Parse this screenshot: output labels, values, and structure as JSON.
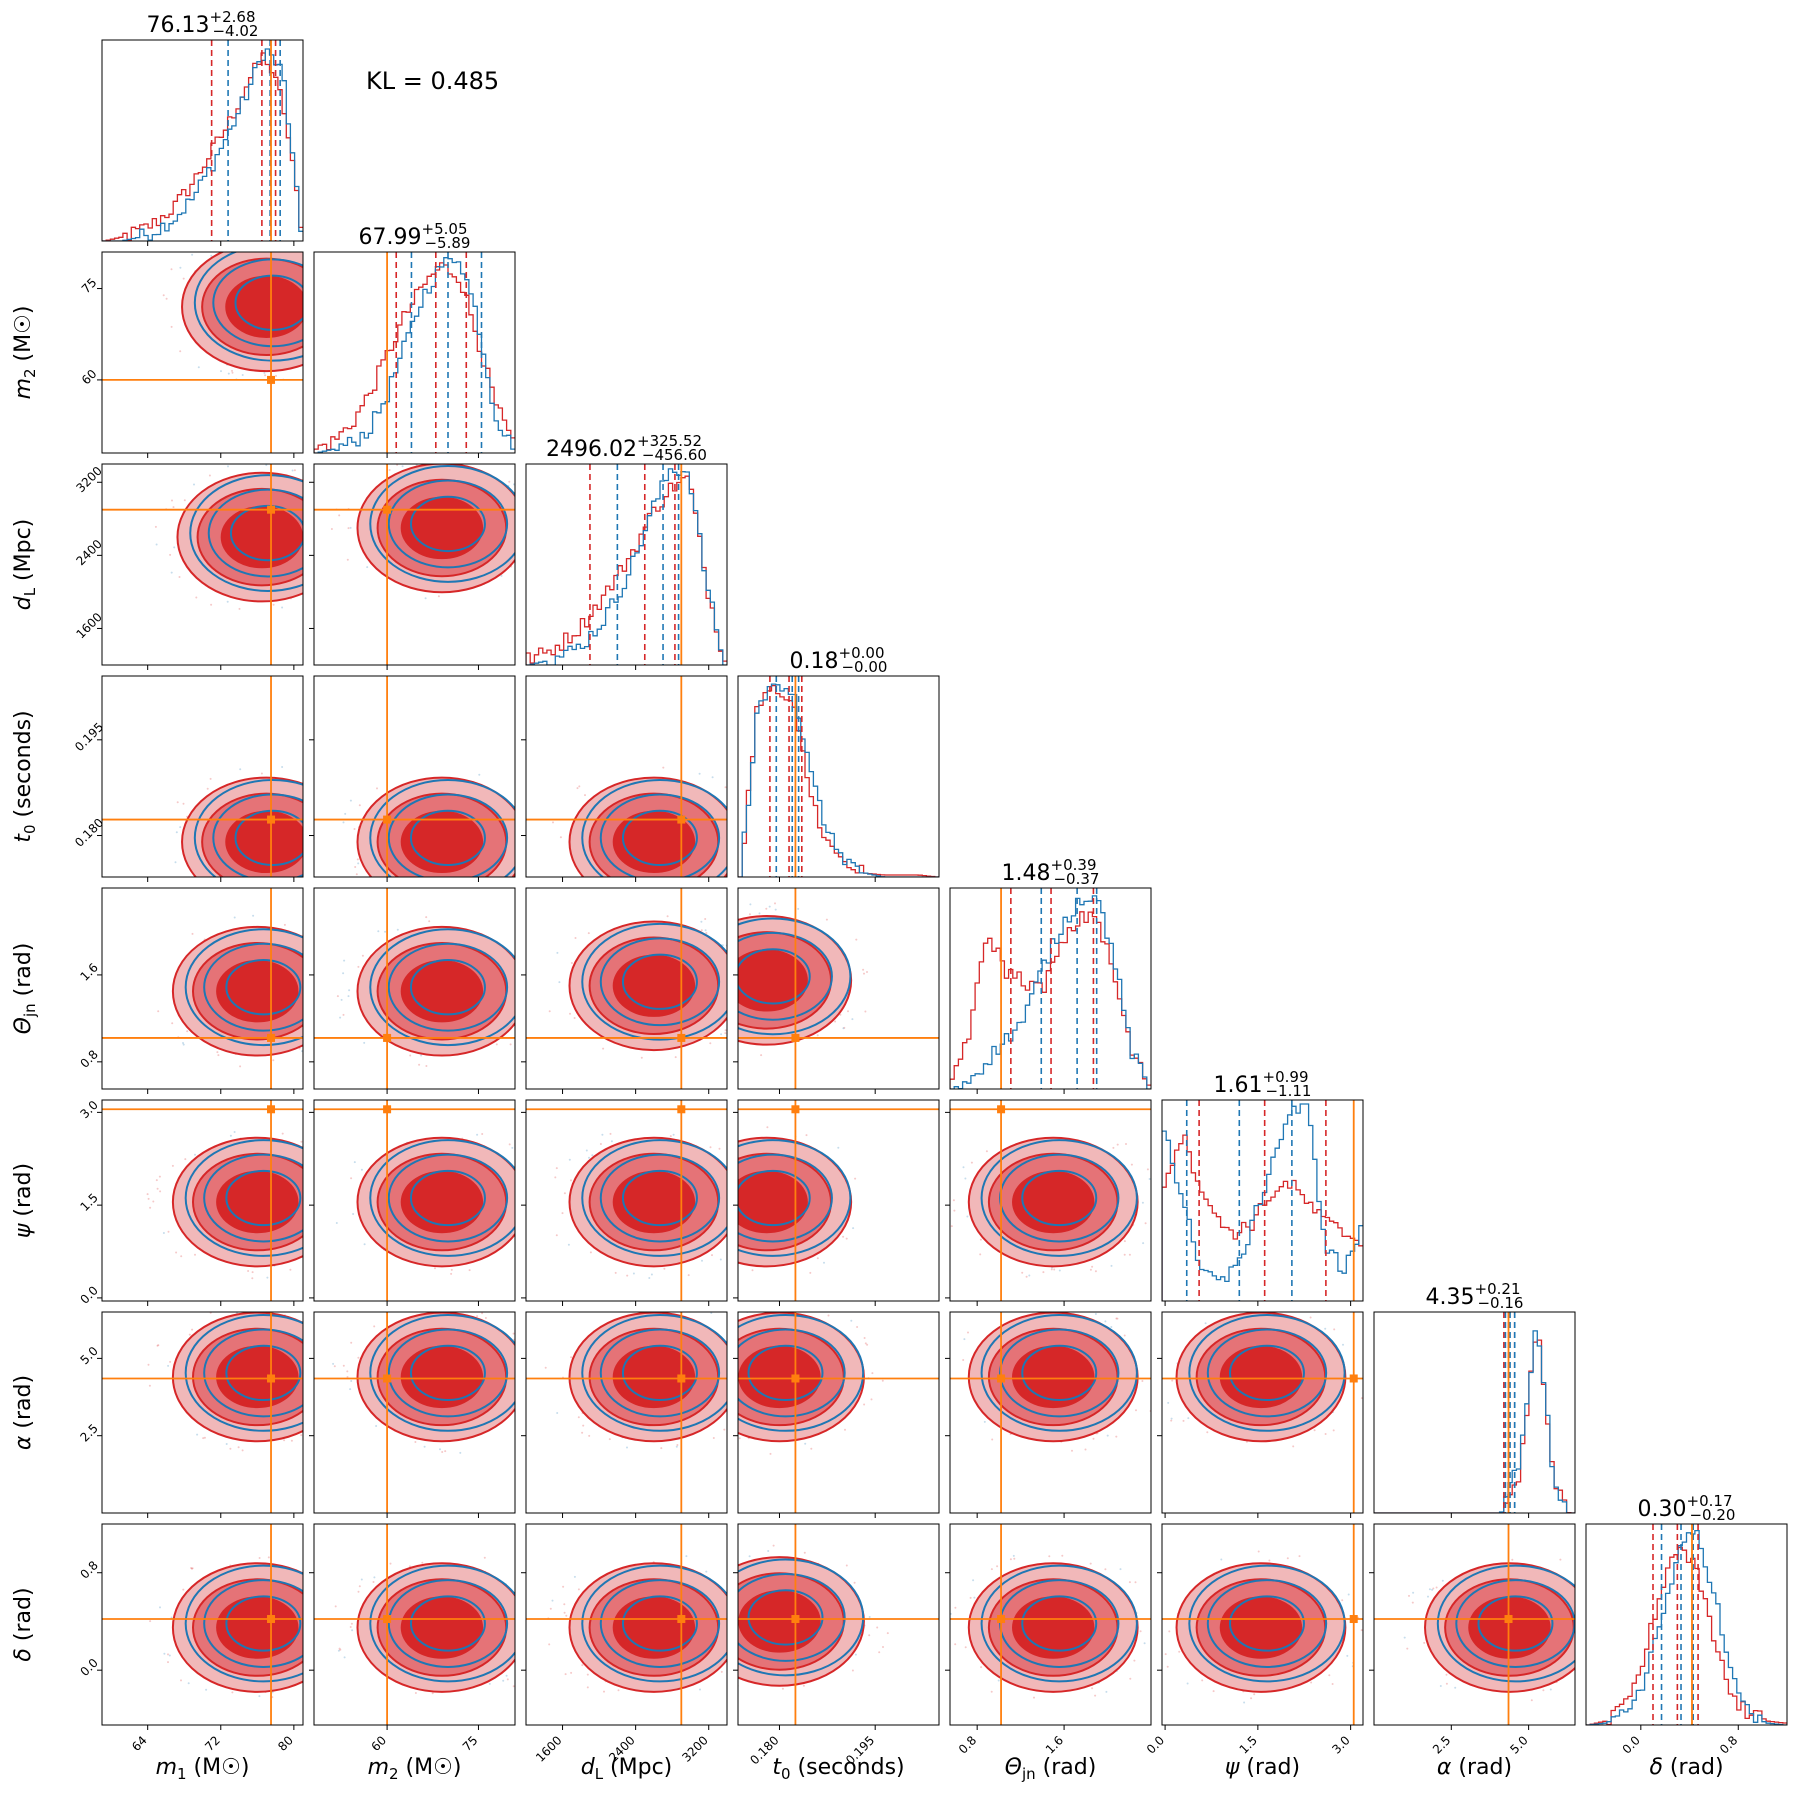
{
  "kl_text": "KL = 0.485",
  "colors": {
    "red": "#d62728",
    "red_fill_outer": "#f1b8b9",
    "red_fill_mid": "#e57377",
    "blue": "#1f77b4",
    "truth": "#ff7f0e"
  },
  "chart_data": {
    "type": "corner",
    "parameters": [
      {
        "key": "m1",
        "label": "m₁ (M☉)",
        "label_main": "m",
        "label_sub": "1",
        "label_unit": " (M☉)",
        "range": [
          59,
          81
        ],
        "ticks": [
          64,
          72,
          80
        ],
        "tick_labels": [
          "64",
          "72",
          "80"
        ],
        "truth": 77.5,
        "summary": {
          "median": "76.13",
          "plus": "+2.68",
          "minus": "−4.02"
        }
      },
      {
        "key": "m2",
        "label": "m₂ (M☉)",
        "label_main": "m",
        "label_sub": "2",
        "label_unit": " (M☉)",
        "range": [
          48,
          81
        ],
        "ticks": [
          60,
          75
        ],
        "tick_labels": [
          "60",
          "75"
        ],
        "truth": 60,
        "summary": {
          "median": "67.99",
          "plus": "+5.05",
          "minus": "−5.89"
        }
      },
      {
        "key": "dL",
        "label": "d_L (Mpc)",
        "label_main": "d",
        "label_sub": "L",
        "label_unit": " (Mpc)",
        "range": [
          1200,
          3400
        ],
        "ticks": [
          1600,
          2400,
          3200
        ],
        "tick_labels": [
          "1600",
          "2400",
          "3200"
        ],
        "truth": 2900,
        "summary": {
          "median": "2496.02",
          "plus": "+325.52",
          "minus": "−456.60"
        }
      },
      {
        "key": "t0",
        "label": "t₀ (seconds)",
        "label_main": "t",
        "label_sub": "0",
        "label_unit": " (seconds)",
        "range": [
          0.1735,
          0.205
        ],
        "ticks": [
          0.18,
          0.195
        ],
        "tick_labels": [
          "0.180",
          "0.195"
        ],
        "truth": 0.1825,
        "summary": {
          "median": "0.18",
          "plus": "+0.00",
          "minus": "−0.00"
        }
      },
      {
        "key": "theta_jn",
        "label": "Θ_jn (rad)",
        "label_main": "Θ",
        "label_sub": "jn",
        "label_unit": " (rad)",
        "range": [
          0.55,
          2.4
        ],
        "ticks": [
          0.8,
          1.6
        ],
        "tick_labels": [
          "0.8",
          "1.6"
        ],
        "truth": 1.02,
        "summary": {
          "median": "1.48",
          "plus": "+0.39",
          "minus": "−0.37"
        }
      },
      {
        "key": "psi",
        "label": "ψ (rad)",
        "label_main": "ψ",
        "label_sub": "",
        "label_unit": " (rad)",
        "range": [
          -0.05,
          3.2
        ],
        "ticks": [
          0.0,
          1.5,
          3.0
        ],
        "tick_labels": [
          "0.0",
          "1.5",
          "3.0"
        ],
        "truth": 3.05,
        "summary": {
          "median": "1.61",
          "plus": "+0.99",
          "minus": "−1.11"
        }
      },
      {
        "key": "alpha",
        "label": "α (rad)",
        "label_main": "α",
        "label_sub": "",
        "label_unit": " (rad)",
        "range": [
          0.0,
          6.5
        ],
        "ticks": [
          2.5,
          5.0
        ],
        "tick_labels": [
          "2.5",
          "5.0"
        ],
        "truth": 4.35,
        "summary": {
          "median": "4.35",
          "plus": "+0.21",
          "minus": "−0.16"
        }
      },
      {
        "key": "delta",
        "label": "δ (rad)",
        "label_main": "δ",
        "label_sub": "",
        "label_unit": " (rad)",
        "range": [
          -0.45,
          1.2
        ],
        "ticks": [
          0.0,
          0.8
        ],
        "tick_labels": [
          "0.0",
          "0.8"
        ],
        "truth": 0.42,
        "summary": {
          "median": "0.30",
          "plus": "+0.17",
          "minus": "−0.20"
        }
      }
    ],
    "quantile_lines": {
      "red": [
        [
          71.0,
          76.5,
          78.0
        ],
        [
          61.5,
          68.0,
          73.0
        ],
        [
          1900,
          2500,
          2830
        ],
        [
          0.1785,
          0.1815,
          0.1835
        ],
        [
          1.11,
          1.48,
          1.87
        ],
        [
          0.55,
          1.61,
          2.6
        ],
        [
          4.2,
          4.35,
          4.55
        ],
        [
          0.1,
          0.3,
          0.47
        ]
      ],
      "blue": [
        [
          72.8,
          77.4,
          78.5
        ],
        [
          64.0,
          70.0,
          75.5
        ],
        [
          2200,
          2700,
          2870
        ],
        [
          0.1795,
          0.182,
          0.183
        ],
        [
          1.39,
          1.72,
          1.9
        ],
        [
          0.35,
          1.2,
          2.05
        ],
        [
          4.25,
          4.4,
          4.55
        ],
        [
          0.17,
          0.33,
          0.43
        ]
      ]
    },
    "histogram_shapes": {
      "red": [
        [
          0.0,
          0.02,
          0.05,
          0.1,
          0.18,
          0.3,
          0.45,
          0.6,
          0.8,
          0.95,
          0.7,
          0.1
        ],
        [
          0.02,
          0.06,
          0.15,
          0.3,
          0.5,
          0.7,
          0.85,
          0.95,
          0.9,
          0.6,
          0.25,
          0.05
        ],
        [
          0.03,
          0.06,
          0.12,
          0.2,
          0.32,
          0.45,
          0.6,
          0.78,
          0.9,
          0.95,
          0.4,
          0.02
        ],
        [
          0.0,
          0.9,
          0.95,
          0.85,
          0.4,
          0.15,
          0.05,
          0.02,
          0.01,
          0.01,
          0.01,
          0.0
        ],
        [
          0.05,
          0.3,
          0.8,
          0.6,
          0.55,
          0.5,
          0.7,
          0.85,
          0.9,
          0.6,
          0.2,
          0.02
        ],
        [
          0.6,
          0.85,
          0.6,
          0.4,
          0.35,
          0.4,
          0.55,
          0.6,
          0.5,
          0.4,
          0.35,
          0.3
        ],
        [
          0.0,
          0.0,
          0.0,
          0.0,
          0.0,
          0.0,
          0.0,
          0.0,
          0.2,
          0.95,
          0.15,
          0.0
        ],
        [
          0.0,
          0.02,
          0.08,
          0.3,
          0.65,
          0.9,
          0.8,
          0.45,
          0.15,
          0.05,
          0.02,
          0.01
        ]
      ],
      "blue": [
        [
          0.0,
          0.0,
          0.02,
          0.06,
          0.12,
          0.22,
          0.38,
          0.55,
          0.75,
          0.98,
          0.85,
          0.05
        ],
        [
          0.0,
          0.02,
          0.05,
          0.12,
          0.3,
          0.55,
          0.8,
          0.95,
          1.0,
          0.7,
          0.2,
          0.02
        ],
        [
          0.0,
          0.02,
          0.05,
          0.1,
          0.2,
          0.35,
          0.55,
          0.8,
          1.0,
          0.98,
          0.4,
          0.0
        ],
        [
          0.0,
          0.85,
          1.0,
          0.95,
          0.5,
          0.2,
          0.08,
          0.02,
          0.0,
          0.0,
          0.0,
          0.0
        ],
        [
          0.0,
          0.05,
          0.15,
          0.25,
          0.35,
          0.6,
          0.8,
          0.95,
          1.0,
          0.7,
          0.2,
          0.0
        ],
        [
          0.9,
          0.5,
          0.2,
          0.1,
          0.15,
          0.4,
          0.7,
          0.95,
          1.0,
          0.3,
          0.15,
          0.35
        ],
        [
          0.0,
          0.0,
          0.0,
          0.0,
          0.0,
          0.0,
          0.0,
          0.0,
          0.25,
          1.0,
          0.1,
          0.0
        ],
        [
          0.0,
          0.01,
          0.05,
          0.2,
          0.5,
          0.85,
          1.0,
          0.7,
          0.25,
          0.05,
          0.01,
          0.0
        ]
      ]
    },
    "contour_centers": [
      [],
      [
        [
          77.0,
          72.0
        ]
      ],
      [
        [
          76.5,
          2600
        ],
        [
          69.0,
          2700
        ]
      ],
      [
        [
          77.0,
          0.179
        ],
        [
          69.0,
          0.179
        ],
        [
          2600,
          0.179
        ]
      ],
      [
        [
          76.0,
          1.45
        ],
        [
          69.0,
          1.45
        ],
        [
          2600,
          1.5
        ],
        [
          0.178,
          1.55
        ]
      ],
      [
        [
          76.0,
          1.55
        ],
        [
          69.0,
          1.55
        ],
        [
          2600,
          1.55
        ],
        [
          0.178,
          1.55
        ],
        [
          1.5,
          1.55
        ]
      ],
      [
        [
          76.0,
          4.4
        ],
        [
          69.0,
          4.4
        ],
        [
          2600,
          4.4
        ],
        [
          0.18,
          4.4
        ],
        [
          1.5,
          4.4
        ],
        [
          1.55,
          4.4
        ]
      ],
      [
        [
          76.0,
          0.35
        ],
        [
          69.0,
          0.35
        ],
        [
          2600,
          0.35
        ],
        [
          0.18,
          0.4
        ],
        [
          1.5,
          0.35
        ],
        [
          1.55,
          0.35
        ],
        [
          4.38,
          0.35
        ]
      ]
    ]
  }
}
